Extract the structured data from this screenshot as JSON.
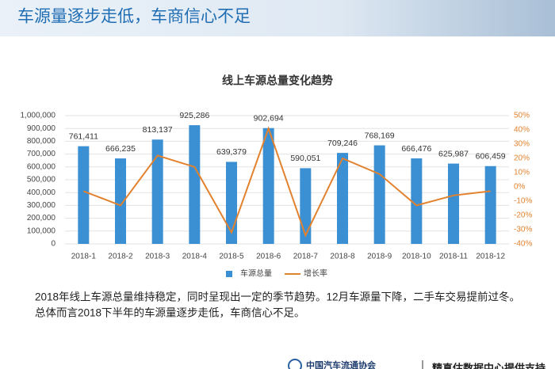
{
  "header": {
    "title": "车源量逐步走低，车商信心不足"
  },
  "chart_data": {
    "type": "bar",
    "title": "线上车源总量变化趋势",
    "categories": [
      "2018-1",
      "2018-2",
      "2018-3",
      "2018-4",
      "2018-5",
      "2018-6",
      "2018-7",
      "2018-8",
      "2018-9",
      "2018-10",
      "2018-11",
      "2018-12"
    ],
    "series": [
      {
        "name": "车源总量",
        "type": "bar",
        "color": "#3b8fd3",
        "values": [
          761411,
          666235,
          813137,
          925286,
          639379,
          902694,
          590051,
          709246,
          768169,
          666476,
          625987,
          606459
        ],
        "value_labels": [
          "761,411",
          "666,235",
          "813,137",
          "925,286",
          "639,379",
          "902,694",
          "590,051",
          "709,246",
          "768,169",
          "666,476",
          "625,987",
          "606,459"
        ]
      },
      {
        "name": "增长率",
        "type": "line",
        "axis": "y2",
        "color": "#e2822e",
        "values": [
          -3,
          -13,
          22,
          14,
          -32,
          41,
          -34,
          20,
          9,
          -13,
          -6,
          -3
        ]
      }
    ],
    "ylim": [
      0,
      1000000
    ],
    "yticks": [
      0,
      {
        "value": 100000,
        "label": "100,000"
      },
      {
        "value": 200000,
        "label": "200,000"
      },
      {
        "value": 300000,
        "label": "300,000"
      },
      {
        "value": 400000,
        "label": "400,000"
      },
      {
        "value": 500000,
        "label": "500,000"
      },
      {
        "value": 600000,
        "label": "600,000"
      },
      {
        "value": 700000,
        "label": "700,000"
      },
      {
        "value": 800000,
        "label": "800,000"
      },
      {
        "value": 900000,
        "label": "900,000"
      },
      {
        "value": 1000000,
        "label": "1,000,000"
      }
    ],
    "y2lim": [
      -40,
      50
    ],
    "y2ticks": [
      {
        "value": -40,
        "label": "-40%"
      },
      {
        "value": -30,
        "label": "-30%"
      },
      {
        "value": -20,
        "label": "-20%"
      },
      {
        "value": -10,
        "label": "-10%"
      },
      {
        "value": 0,
        "label": "0%"
      },
      {
        "value": 10,
        "label": "10%"
      },
      {
        "value": 20,
        "label": "20%"
      },
      {
        "value": 30,
        "label": "30%"
      },
      {
        "value": 40,
        "label": "40%"
      },
      {
        "value": 50,
        "label": "50%"
      }
    ],
    "grid": true,
    "legend": "bottom"
  },
  "text": {
    "lines": [
      "2018年线上车源总量维持稳定，同时呈现出一定的季节趋势。12月车源量下降，二手车交易提前过冬。",
      "总体而言2018下半年的车源量逐步走低，车商信心不足。"
    ]
  },
  "footer": {
    "logo": "中国汽车流通协会",
    "note": "精真估数据中心提供支持"
  }
}
